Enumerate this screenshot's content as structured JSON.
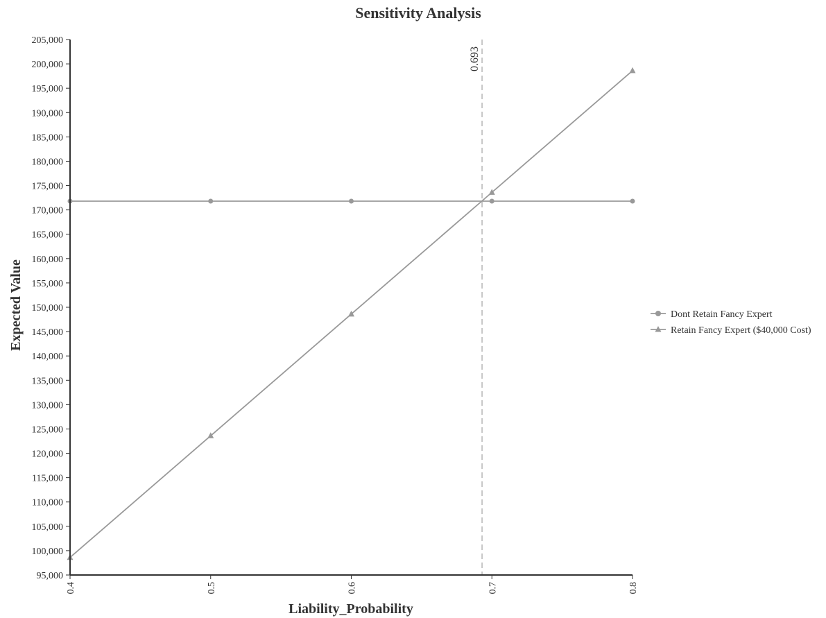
{
  "chart_data": {
    "type": "line",
    "title": "Sensitivity Analysis",
    "xlabel": "Liability_Probability",
    "ylabel": "Expected Value",
    "x": [
      0.4,
      0.5,
      0.6,
      0.7,
      0.8
    ],
    "xticks": [
      "0.4",
      "0.5",
      "0.6",
      "0.7",
      "0.8"
    ],
    "xlim": [
      0.4,
      0.8
    ],
    "ylim": [
      95000,
      205000
    ],
    "yticks": [
      "95,000",
      "100,000",
      "105,000",
      "110,000",
      "115,000",
      "120,000",
      "125,000",
      "130,000",
      "135,000",
      "140,000",
      "145,000",
      "150,000",
      "155,000",
      "160,000",
      "165,000",
      "170,000",
      "175,000",
      "180,000",
      "185,000",
      "190,000",
      "195,000",
      "200,000",
      "205,000"
    ],
    "grid": false,
    "legend_position": "right",
    "series": [
      {
        "name": "Dont Retain Fancy Expert",
        "marker": "circle",
        "values": [
          171800,
          171800,
          171800,
          171800,
          171800
        ]
      },
      {
        "name": "Retain Fancy Expert ($40,000 Cost)",
        "marker": "triangle",
        "values": [
          98600,
          123600,
          148600,
          173600,
          198600
        ]
      }
    ],
    "annotations": [
      {
        "type": "vline",
        "x": 0.693,
        "label": "0.693"
      }
    ],
    "colors": {
      "series": "#999999",
      "axis": "#333333",
      "vline": "#bbbbbb",
      "text": "#333333"
    }
  }
}
